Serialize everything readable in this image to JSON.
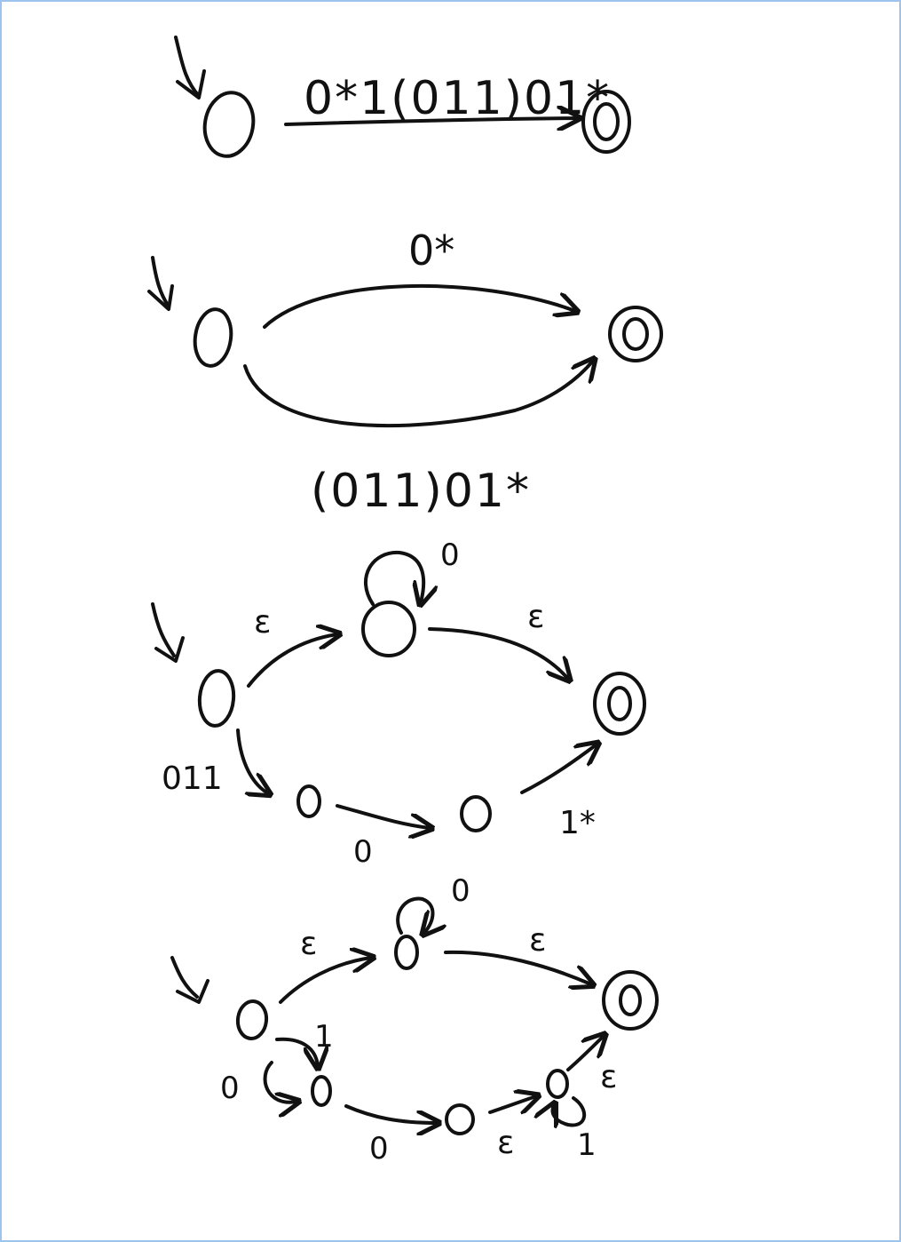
{
  "colors": {
    "ink": "#111111",
    "paper": "#ffffff",
    "frame": "#9cc4ec"
  },
  "diagrams": [
    {
      "id": "step1",
      "labels": {
        "main": "0*1(011)01*"
      }
    },
    {
      "id": "step2",
      "labels": {
        "top": "0*",
        "bottom": "(011)01*"
      }
    },
    {
      "id": "step3",
      "labels": {
        "eps_left": "ε",
        "loop": "0",
        "eps_right": "ε",
        "left_down": "011",
        "bottom_mid": "0",
        "right_up": "1*"
      }
    },
    {
      "id": "step4",
      "labels": {
        "eps_left": "ε",
        "loop": "0",
        "eps_right": "ε",
        "one": "1",
        "loop0": "0",
        "bottom_mid": "0",
        "eps_bottom": "ε",
        "loop1": "1",
        "eps_final": "ε"
      }
    }
  ]
}
